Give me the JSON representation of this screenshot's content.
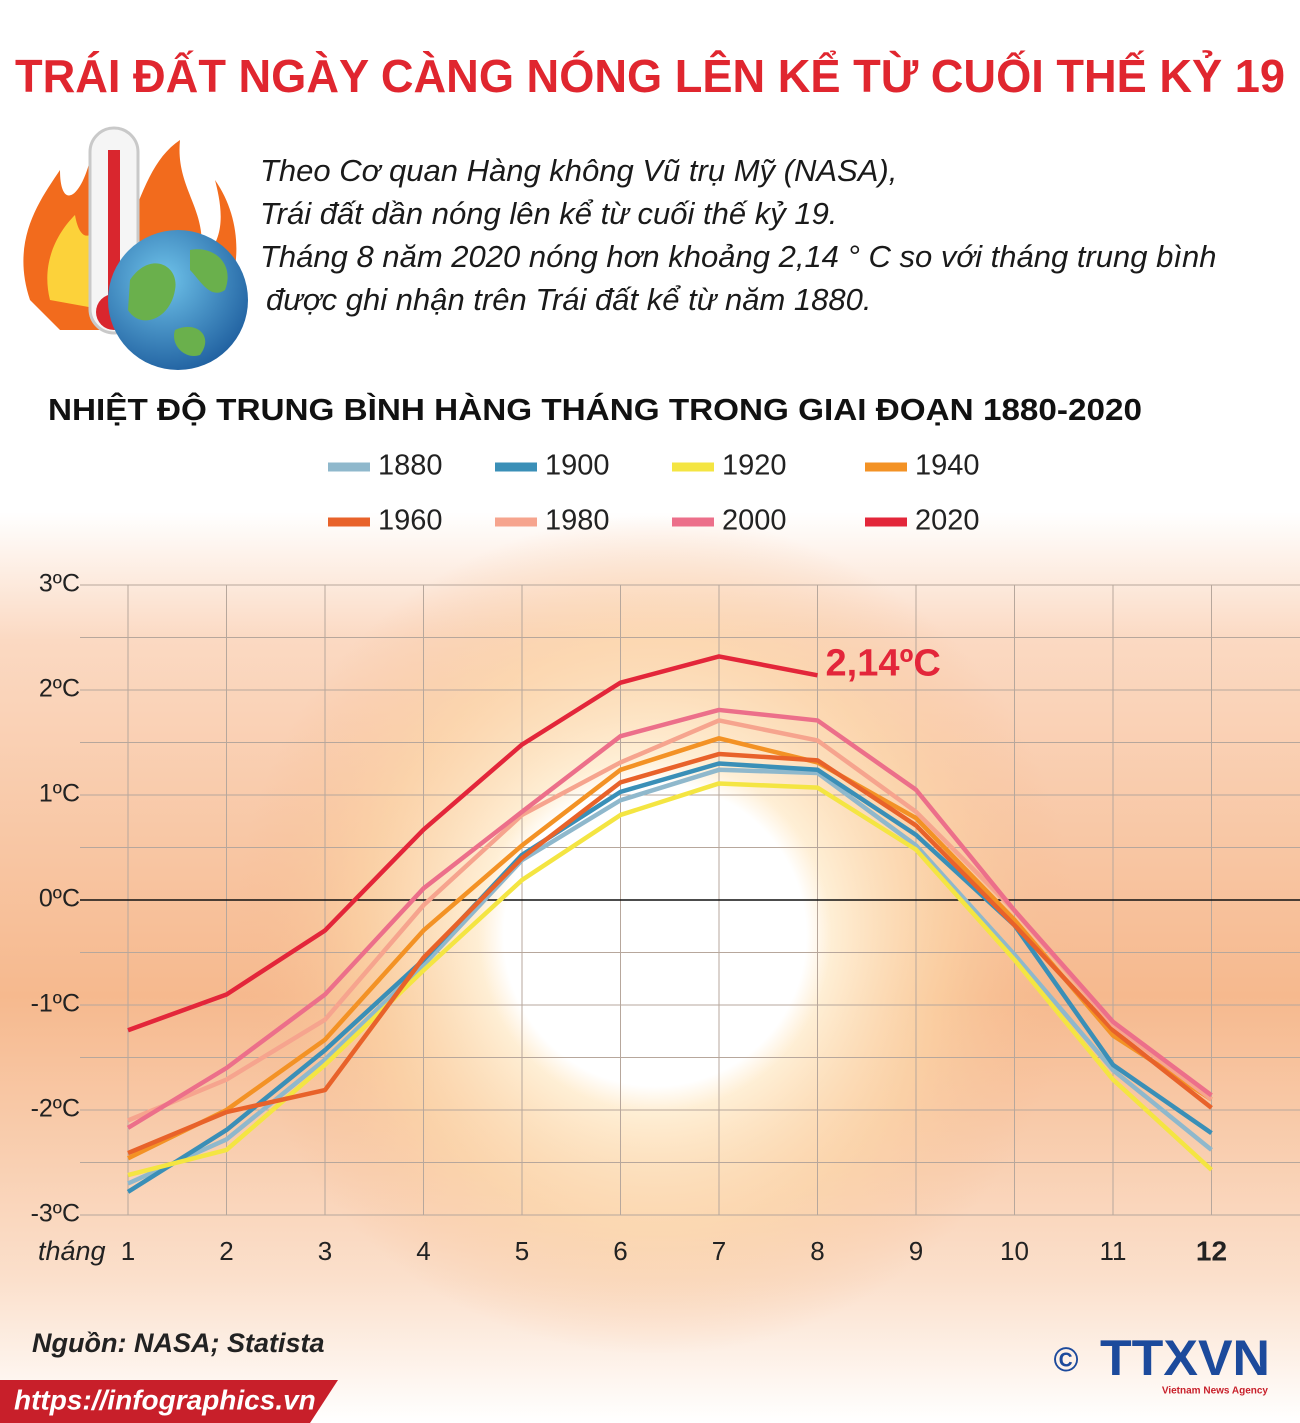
{
  "header": {
    "title": "TRÁI ĐẤT NGÀY CÀNG NÓNG LÊN KỂ TỪ CUỐI THẾ KỶ 19"
  },
  "intro": [
    "Theo Cơ quan Hàng không Vũ trụ Mỹ (NASA),",
    "Trái đất dần nóng lên kể từ cuối thế kỷ 19.",
    "Tháng 8 năm 2020 nóng hơn khoảng 2,14 ° C so với tháng trung bình",
    "được ghi nhận trên Trái đất kể từ năm 1880."
  ],
  "chart_data": {
    "type": "line",
    "title": "NHIỆT ĐỘ TRUNG BÌNH HÀNG THÁNG TRONG GIAI ĐOẠN 1880-2020",
    "xlabel": "tháng",
    "categories": [
      "1",
      "2",
      "3",
      "4",
      "5",
      "6",
      "7",
      "8",
      "9",
      "10",
      "11",
      "12"
    ],
    "ylim": [
      -3,
      3
    ],
    "yticks": [
      {
        "value": -3,
        "label": "-3ºC"
      },
      {
        "value": -2.5,
        "label": null
      },
      {
        "value": -2,
        "label": "-2ºC"
      },
      {
        "value": -1.5,
        "label": null
      },
      {
        "value": -1,
        "label": "-1ºC"
      },
      {
        "value": -0.5,
        "label": null
      },
      {
        "value": 0,
        "label": "0ºC"
      },
      {
        "value": 0.5,
        "label": null
      },
      {
        "value": 1,
        "label": "1ºC"
      },
      {
        "value": 1.5,
        "label": null
      },
      {
        "value": 2,
        "label": "2ºC"
      },
      {
        "value": 2.5,
        "label": null
      },
      {
        "value": 3,
        "label": "3ºC"
      }
    ],
    "grid": true,
    "legend": "top",
    "series": [
      {
        "name": "1880",
        "color": "#8fb8cc",
        "values": [
          -2.7,
          -2.28,
          -1.52,
          -0.62,
          0.38,
          0.95,
          1.24,
          1.21,
          0.52,
          -0.52,
          -1.62,
          -2.38
        ]
      },
      {
        "name": "1900",
        "color": "#3a8fb7",
        "values": [
          -2.78,
          -2.19,
          -1.43,
          -0.57,
          0.43,
          1.03,
          1.3,
          1.24,
          0.62,
          -0.24,
          -1.57,
          -2.22
        ]
      },
      {
        "name": "1920",
        "color": "#f4e542",
        "values": [
          -2.62,
          -2.38,
          -1.57,
          -0.67,
          0.19,
          0.81,
          1.11,
          1.07,
          0.48,
          -0.57,
          -1.71,
          -2.57
        ]
      },
      {
        "name": "1940",
        "color": "#f39225",
        "values": [
          -2.46,
          -2.0,
          -1.33,
          -0.29,
          0.52,
          1.24,
          1.54,
          1.31,
          0.78,
          -0.19,
          -1.29,
          -1.9
        ]
      },
      {
        "name": "1960",
        "color": "#e8622a",
        "values": [
          -2.41,
          -2.02,
          -1.81,
          -0.55,
          0.4,
          1.12,
          1.39,
          1.33,
          0.71,
          -0.24,
          -1.24,
          -1.98
        ]
      },
      {
        "name": "1980",
        "color": "#f6a48e",
        "values": [
          -2.1,
          -1.71,
          -1.14,
          -0.05,
          0.81,
          1.31,
          1.71,
          1.52,
          0.84,
          -0.1,
          -1.19,
          -1.9
        ]
      },
      {
        "name": "2000",
        "color": "#ec6f8a",
        "values": [
          -2.17,
          -1.6,
          -0.9,
          0.11,
          0.84,
          1.56,
          1.81,
          1.71,
          1.05,
          -0.1,
          -1.16,
          -1.86
        ]
      },
      {
        "name": "2020",
        "color": "#e3263a",
        "values": [
          -1.24,
          -0.9,
          -0.29,
          0.67,
          1.48,
          2.07,
          2.32,
          2.14,
          null,
          null,
          null,
          null
        ],
        "value_labels": [
          null,
          null,
          null,
          null,
          null,
          null,
          null,
          "2,14ºC",
          null,
          null,
          null,
          null
        ]
      }
    ]
  },
  "footer": {
    "source": "Nguồn: NASA; Statista",
    "url": "https://infographics.vn",
    "copyright": "©",
    "logo": "TTXVN",
    "logo_sub": "Vietnam News Agency"
  }
}
